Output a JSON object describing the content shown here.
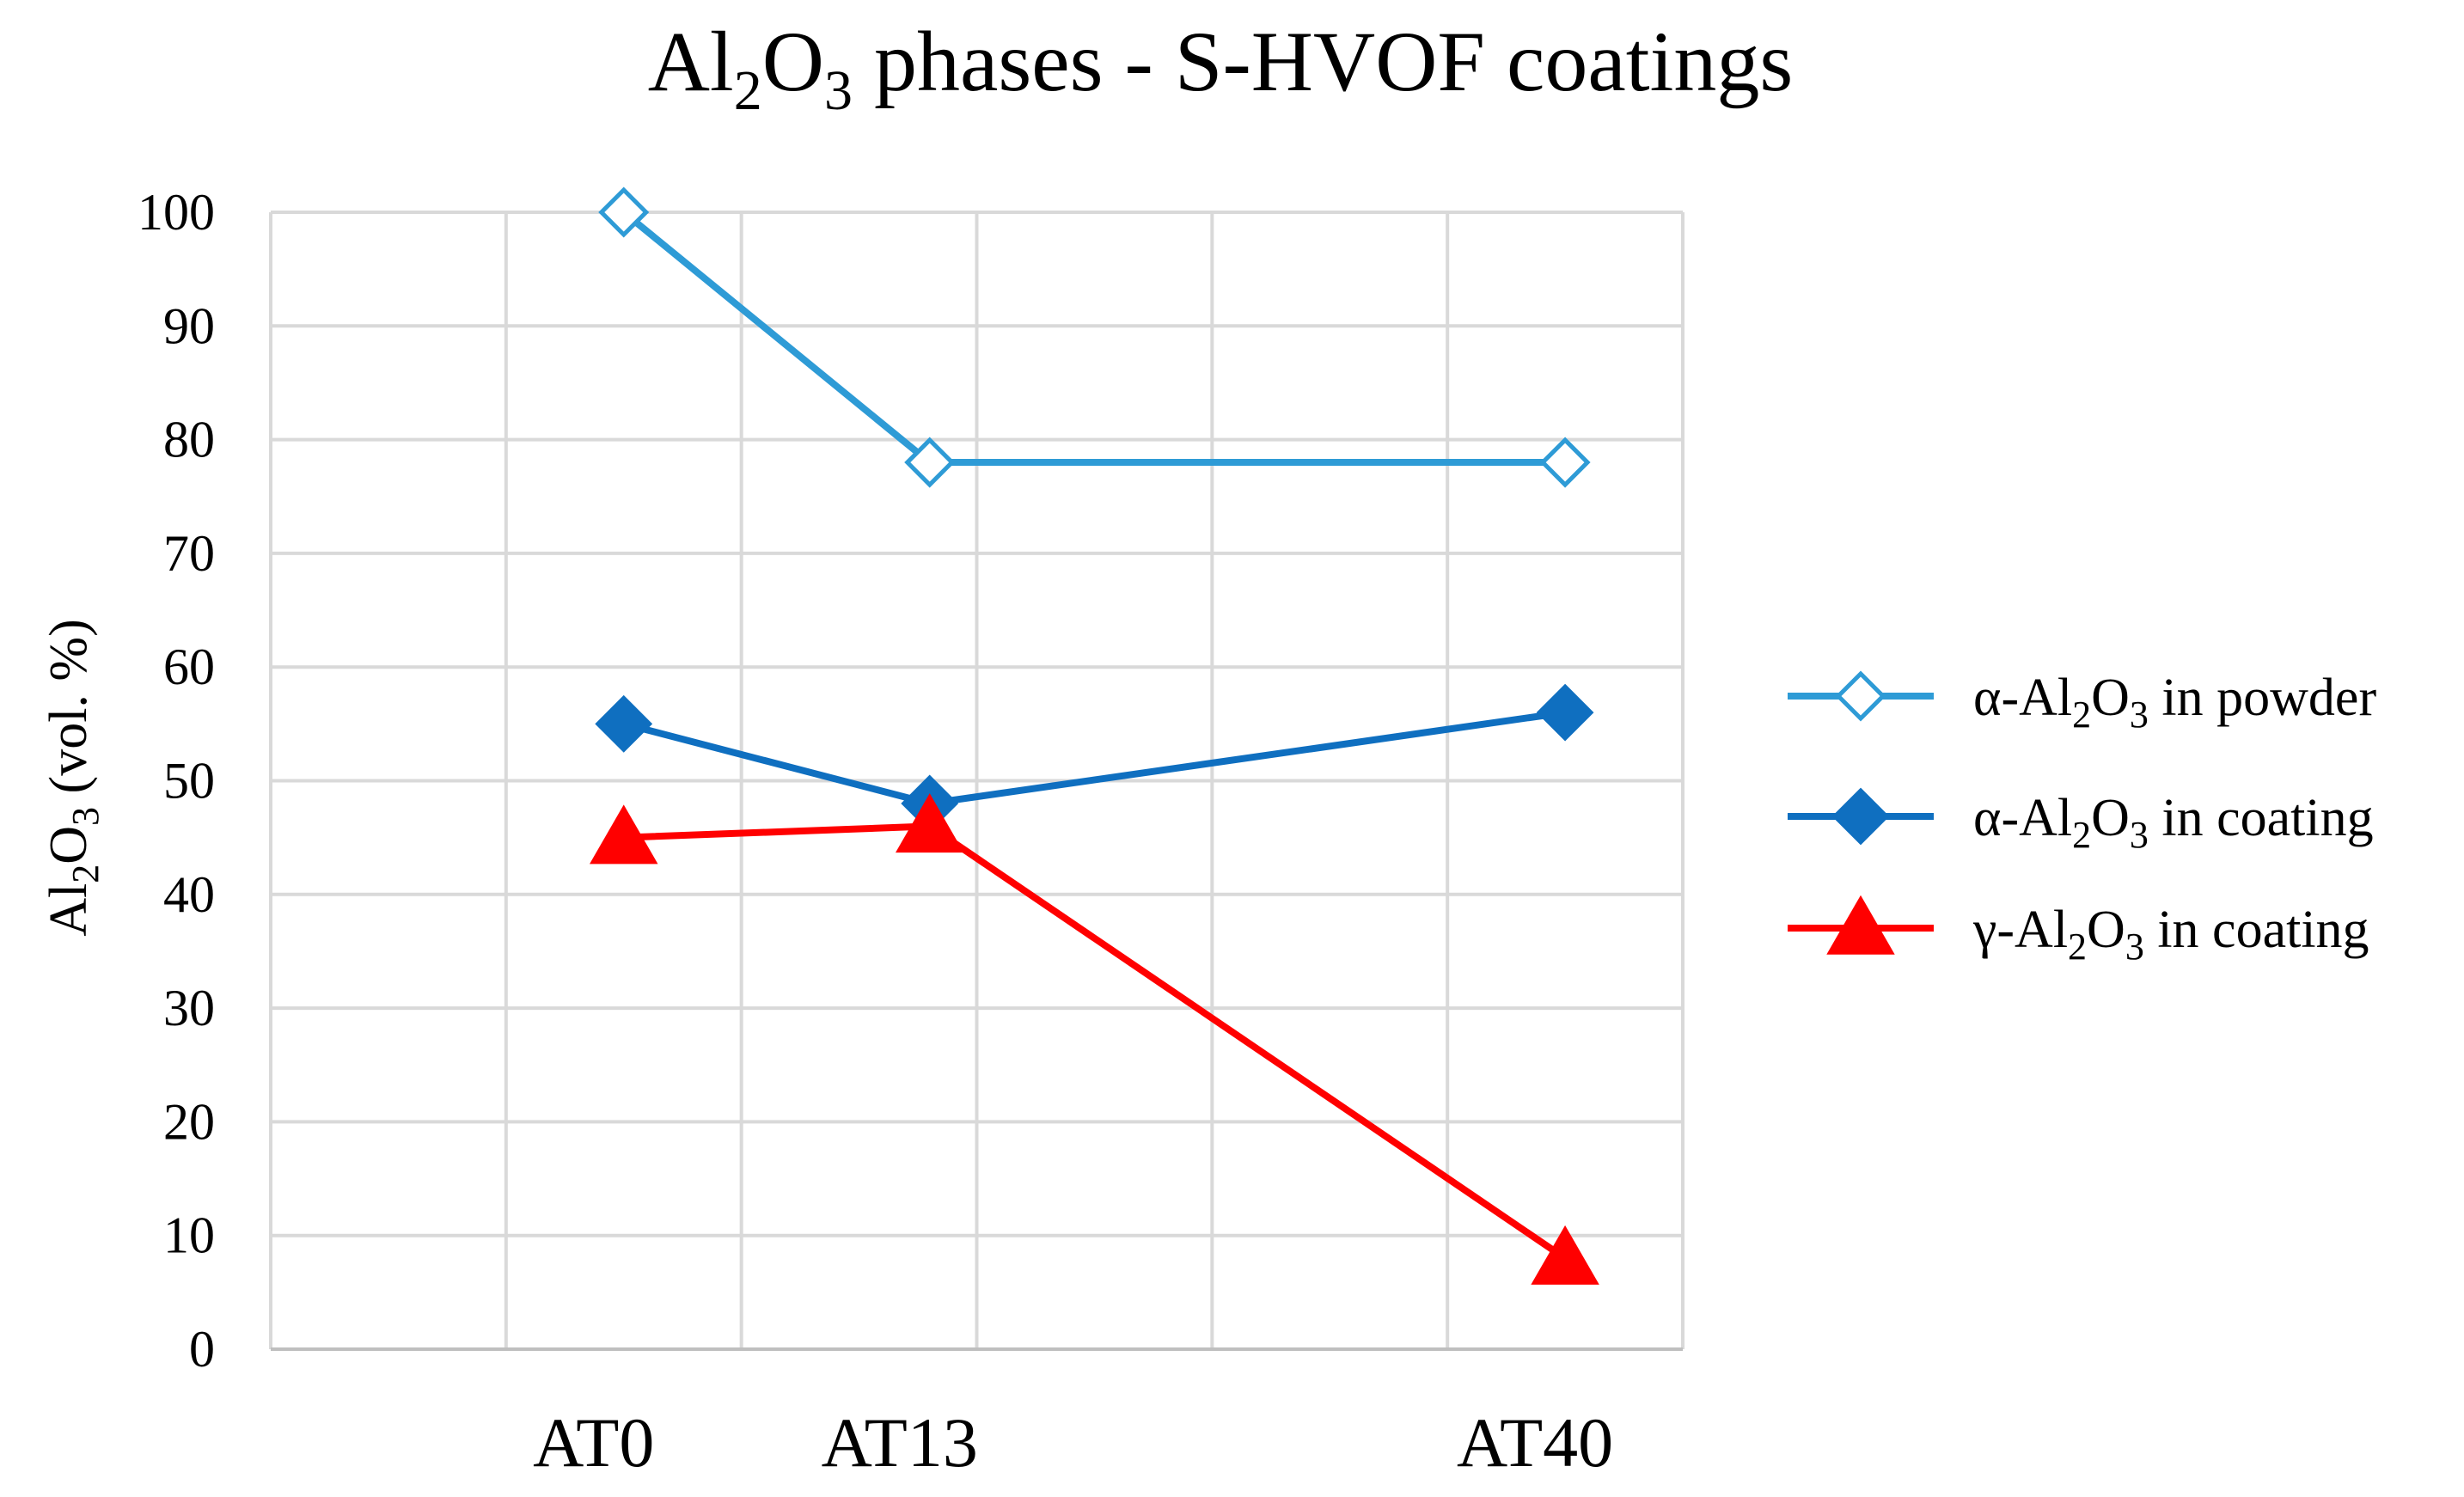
{
  "chart_data": {
    "type": "line",
    "title": {
      "prefix": "Al",
      "sub1": "2",
      "mid": "O",
      "sub2": "3",
      "suffix": " phases - S-HVOF coatings"
    },
    "ylabel": {
      "prefix": "Al",
      "sub1": "2",
      "mid": "O",
      "sub2": "3",
      "suffix": " (vol. %)"
    },
    "xlabel": "",
    "ylim": [
      0,
      100
    ],
    "yticks": [
      0,
      10,
      20,
      30,
      40,
      50,
      60,
      70,
      80,
      90,
      100
    ],
    "x_range": [
      0,
      6
    ],
    "x_gridlines": [
      1,
      2,
      3,
      4,
      5,
      6
    ],
    "categories": [
      {
        "label": "AT0",
        "x": 1.5
      },
      {
        "label": "AT13",
        "x": 2.8
      },
      {
        "label": "AT40",
        "x": 5.5
      }
    ],
    "series": [
      {
        "name": {
          "prefix": "α-Al",
          "sub1": "2",
          "mid": "O",
          "sub2": "3",
          "suffix": " in powder"
        },
        "key": "alpha-powder",
        "color": "#2e9bd6",
        "marker": "diamond-open",
        "values": [
          100,
          78,
          78
        ]
      },
      {
        "name": {
          "prefix": "α-Al",
          "sub1": "2",
          "mid": "O",
          "sub2": "3",
          "suffix": " in coating"
        },
        "key": "alpha-coating",
        "color": "#0f6fc0",
        "marker": "diamond-filled",
        "values": [
          55,
          48,
          56
        ]
      },
      {
        "name": {
          "prefix": "γ-Al",
          "sub1": "2",
          "mid": "O",
          "sub2": "3",
          "suffix": " in coating"
        },
        "key": "gamma-coating",
        "color": "#ff0000",
        "marker": "triangle",
        "values": [
          45,
          46,
          8
        ]
      }
    ],
    "legend": "right",
    "grid": true
  }
}
